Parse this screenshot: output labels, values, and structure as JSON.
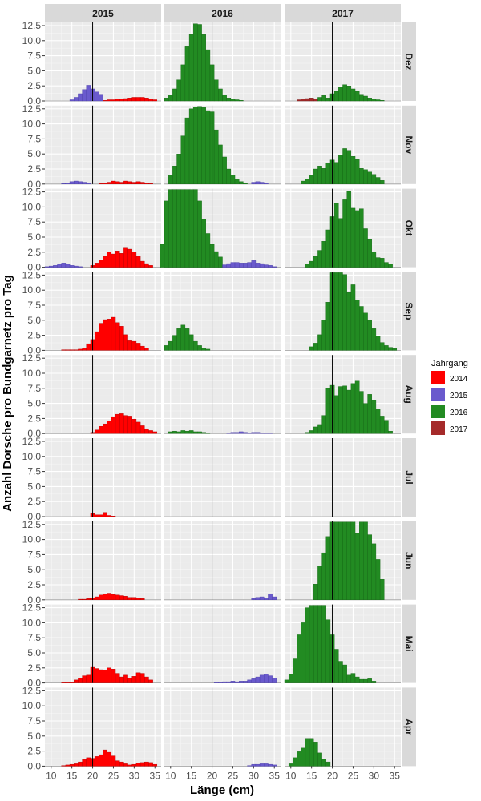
{
  "chart_data": {
    "type": "bar",
    "layout": "faceted histogram grid",
    "xlabel": "Länge (cm)",
    "ylabel": "Anzahl Dorsche pro Bundgarnetz pro Tag",
    "column_facets": [
      "2015",
      "2016",
      "2017"
    ],
    "row_facets": [
      "Dez",
      "Nov",
      "Okt",
      "Sep",
      "Aug",
      "Jul",
      "Jun",
      "Mai",
      "Apr"
    ],
    "xlim": [
      8.5,
      36.5
    ],
    "ylim": [
      0,
      12.5
    ],
    "x_ticks": [
      10,
      15,
      20,
      25,
      30,
      35
    ],
    "y_ticks": [
      "0.0",
      "2.5",
      "5.0",
      "7.5",
      "10.0",
      "12.5"
    ],
    "reference_line_x": 20,
    "bin_width_cm": 1,
    "legend": {
      "title": "Jahrgang",
      "placement": "right",
      "entries": [
        {
          "name": "2014",
          "color": "#ff0000"
        },
        {
          "name": "2015",
          "color": "#6a5acd"
        },
        {
          "name": "2016",
          "color": "#228b22"
        },
        {
          "name": "2017",
          "color": "#a52a2a"
        }
      ]
    },
    "panels": [
      {
        "row": "Dez",
        "col": "2015",
        "series": [
          {
            "cohort": "2015",
            "start": 15,
            "values": [
              0.2,
              0.6,
              1.2,
              1.9,
              2.6,
              2.0,
              1.5,
              1.1
            ]
          },
          {
            "cohort": "2014",
            "start": 23,
            "values": [
              0.1,
              0.2,
              0.2,
              0.3,
              0.3,
              0.4,
              0.5,
              0.6,
              0.6,
              0.6,
              0.5,
              0.3,
              0.2
            ]
          }
        ]
      },
      {
        "row": "Dez",
        "col": "2016",
        "series": [
          {
            "cohort": "2016",
            "start": 9,
            "values": [
              0.5,
              1.0,
              2.0,
              3.5,
              6.0,
              9.0,
              11.0,
              12.8,
              12.7,
              11.0,
              8.5,
              6.0,
              3.5,
              2.0,
              1.0,
              0.5,
              0.3,
              0.2,
              0.1
            ]
          }
        ]
      },
      {
        "row": "Dez",
        "col": "2017",
        "series": [
          {
            "cohort": "2017",
            "start": 12,
            "values": [
              0.2,
              0.3,
              0.4,
              0.5,
              0.3
            ]
          },
          {
            "cohort": "2016",
            "start": 17,
            "values": [
              0.6,
              0.9,
              0.5,
              1.2,
              1.6,
              2.3,
              2.7,
              2.5,
              2.0,
              1.6,
              1.1,
              0.8,
              0.5,
              0.3,
              0.2,
              0.1
            ]
          }
        ]
      },
      {
        "row": "Nov",
        "col": "2015",
        "series": [
          {
            "cohort": "2015",
            "start": 13,
            "values": [
              0.1,
              0.2,
              0.4,
              0.5,
              0.4,
              0.3,
              0.2
            ]
          },
          {
            "cohort": "2014",
            "start": 22,
            "values": [
              0.1,
              0.2,
              0.3,
              0.5,
              0.4,
              0.3,
              0.5,
              0.4,
              0.3,
              0.4,
              0.3,
              0.2,
              0.1
            ]
          }
        ]
      },
      {
        "row": "Nov",
        "col": "2016",
        "series": [
          {
            "cohort": "2016",
            "start": 10,
            "values": [
              1.5,
              3.0,
              5.0,
              8.0,
              11.0,
              12.5,
              12.8,
              12.9,
              12.7,
              12.2,
              12.0,
              9.0,
              6.5,
              4.5,
              2.5,
              1.5,
              0.8,
              0.4,
              0.2
            ]
          },
          {
            "cohort": "2015",
            "start": 30,
            "values": [
              0.3,
              0.4,
              0.3,
              0.2
            ]
          }
        ]
      },
      {
        "row": "Nov",
        "col": "2017",
        "series": [
          {
            "cohort": "2016",
            "start": 13,
            "values": [
              0.5,
              0.8,
              1.5,
              2.5,
              3.0,
              2.6,
              3.5,
              4.0,
              3.6,
              4.8,
              5.9,
              5.6,
              4.6,
              4.1,
              2.6,
              2.4,
              2.0,
              1.6,
              1.1,
              0.6
            ]
          }
        ]
      },
      {
        "row": "Okt",
        "col": "2015",
        "series": [
          {
            "cohort": "2015",
            "start": 9,
            "values": [
              0.1,
              0.2,
              0.3,
              0.5,
              0.7,
              0.5,
              0.3,
              0.2,
              0.1
            ]
          },
          {
            "cohort": "2014",
            "start": 20,
            "values": [
              0.3,
              0.7,
              1.2,
              1.8,
              2.5,
              2.2,
              2.7,
              2.3,
              3.3,
              3.0,
              2.5,
              1.8,
              1.0,
              0.6,
              0.3
            ]
          }
        ]
      },
      {
        "row": "Okt",
        "col": "2016",
        "series": [
          {
            "cohort": "2016",
            "start": 8,
            "values": [
              3.8,
              11.0,
              12.9,
              12.9,
              12.9,
              12.9,
              12.9,
              12.9,
              12.9,
              11.0,
              8.0,
              5.6,
              3.8,
              2.6,
              1.7
            ]
          },
          {
            "cohort": "2015",
            "start": 23,
            "values": [
              0.4,
              0.6,
              0.8,
              0.8,
              0.7,
              0.7,
              0.8,
              1.1,
              0.7,
              0.6,
              0.4,
              0.3,
              0.1
            ]
          }
        ]
      },
      {
        "row": "Okt",
        "col": "2017",
        "series": [
          {
            "cohort": "2016",
            "start": 14,
            "values": [
              0.5,
              1.0,
              1.8,
              2.8,
              4.3,
              6.2,
              8.4,
              10.6,
              8.1,
              11.2,
              12.6,
              9.8,
              9.4,
              9.7,
              6.4,
              4.6,
              2.5,
              1.6,
              1.5,
              0.8,
              0.5
            ]
          }
        ]
      },
      {
        "row": "Sep",
        "col": "2015",
        "series": [
          {
            "cohort": "2014",
            "start": 13,
            "values": [
              0.1,
              0.1,
              0.1,
              0.1,
              0.2,
              0.4,
              1.1,
              1.8,
              3.1,
              4.5,
              5.1,
              5.2,
              5.5,
              4.6,
              4.0,
              2.6,
              1.6,
              1.5,
              1.2,
              0.7,
              0.4
            ]
          }
        ]
      },
      {
        "row": "Sep",
        "col": "2016",
        "series": [
          {
            "cohort": "2016",
            "start": 9,
            "values": [
              0.8,
              1.5,
              2.5,
              3.6,
              4.2,
              3.6,
              2.6,
              1.5,
              0.8,
              0.4,
              0.2
            ]
          }
        ]
      },
      {
        "row": "Sep",
        "col": "2017",
        "series": [
          {
            "cohort": "2016",
            "start": 15,
            "values": [
              0.6,
              1.2,
              2.6,
              5.0,
              8.0,
              12.9,
              12.9,
              12.9,
              12.6,
              9.6,
              10.9,
              8.4,
              7.3,
              6.2,
              5.0,
              3.6,
              2.4,
              1.3,
              0.8,
              0.5,
              0.3
            ]
          }
        ]
      },
      {
        "row": "Aug",
        "col": "2015",
        "series": [
          {
            "cohort": "2014",
            "start": 20,
            "values": [
              0.2,
              0.6,
              1.2,
              1.6,
              2.1,
              2.8,
              3.2,
              3.3,
              3.0,
              2.9,
              2.4,
              1.9,
              1.3,
              0.8,
              0.5,
              0.3
            ]
          }
        ]
      },
      {
        "row": "Aug",
        "col": "2016",
        "series": [
          {
            "cohort": "2016",
            "start": 10,
            "values": [
              0.3,
              0.4,
              0.3,
              0.5,
              0.4,
              0.5,
              0.3,
              0.3,
              0.2,
              0.1
            ]
          },
          {
            "cohort": "2015",
            "start": 24,
            "values": [
              0.1,
              0.2,
              0.2,
              0.3,
              0.2,
              0.1,
              0.2,
              0.2,
              0.1,
              0.1,
              0.1
            ]
          }
        ]
      },
      {
        "row": "Aug",
        "col": "2017",
        "series": [
          {
            "cohort": "2016",
            "start": 14,
            "values": [
              0.2,
              0.5,
              1.1,
              1.5,
              3.0,
              7.5,
              8.0,
              6.3,
              7.8,
              7.9,
              7.2,
              8.3,
              8.7,
              7.0,
              5.0,
              6.5,
              5.5,
              4.1,
              2.9,
              2.2,
              0.4
            ]
          }
        ]
      },
      {
        "row": "Jul",
        "col": "2015",
        "series": [
          {
            "cohort": "2014",
            "start": 20,
            "values": [
              0.5,
              0.3,
              0.3,
              0.7,
              0.2,
              0.1
            ]
          }
        ]
      },
      {
        "row": "Jul",
        "col": "2016",
        "series": []
      },
      {
        "row": "Jul",
        "col": "2017",
        "series": []
      },
      {
        "row": "Jun",
        "col": "2015",
        "series": [
          {
            "cohort": "2014",
            "start": 17,
            "values": [
              0.1,
              0.1,
              0.2,
              0.3,
              0.5,
              0.8,
              1.0,
              1.1,
              0.9,
              0.8,
              0.7,
              0.6,
              0.4,
              0.4,
              0.3,
              0.2
            ]
          }
        ]
      },
      {
        "row": "Jun",
        "col": "2016",
        "series": [
          {
            "cohort": "2015",
            "start": 30,
            "values": [
              0.2,
              0.4,
              0.5,
              0.3,
              1.0,
              0.5
            ]
          }
        ]
      },
      {
        "row": "Jun",
        "col": "2017",
        "series": [
          {
            "cohort": "2016",
            "start": 16,
            "values": [
              2.6,
              5.6,
              7.8,
              10.5,
              12.9,
              12.9,
              12.9,
              12.9,
              12.9,
              12.9,
              11.0,
              12.9,
              12.9,
              10.8,
              9.3,
              6.7,
              3.4
            ]
          }
        ]
      },
      {
        "row": "Mai",
        "col": "2015",
        "series": [
          {
            "cohort": "2014",
            "start": 13,
            "values": [
              0.1,
              0.1,
              0.1,
              0.5,
              0.8,
              1.2,
              1.3,
              2.6,
              2.4,
              2.2,
              2.1,
              2.5,
              2.3,
              1.6,
              1.0,
              1.3,
              0.8,
              1.1,
              1.7,
              1.6,
              1.0,
              0.5
            ]
          }
        ]
      },
      {
        "row": "Mai",
        "col": "2016",
        "series": [
          {
            "cohort": "2015",
            "start": 21,
            "values": [
              0.1,
              0.1,
              0.2,
              0.2,
              0.3,
              0.2,
              0.3,
              0.3,
              0.5,
              0.7,
              1.0,
              1.3,
              1.5,
              1.2,
              0.8
            ]
          }
        ]
      },
      {
        "row": "Mai",
        "col": "2017",
        "series": [
          {
            "cohort": "2016",
            "start": 9,
            "values": [
              0.5,
              1.5,
              4.0,
              8.0,
              10.0,
              12.5,
              12.9,
              12.9,
              12.9,
              12.9,
              10.5,
              8.0,
              5.6,
              3.6,
              3.0,
              1.3,
              1.6,
              1.0,
              0.6,
              0.6,
              0.7,
              0.3
            ]
          }
        ]
      },
      {
        "row": "Apr",
        "col": "2015",
        "series": [
          {
            "cohort": "2014",
            "start": 13,
            "values": [
              0.1,
              0.2,
              0.3,
              0.4,
              0.7,
              1.1,
              1.4,
              1.3,
              1.6,
              1.9,
              2.7,
              2.3,
              1.7,
              0.9,
              0.7,
              0.4,
              0.2,
              0.3,
              0.5,
              0.6,
              0.7,
              0.6,
              0.3
            ]
          }
        ]
      },
      {
        "row": "Apr",
        "col": "2016",
        "series": [
          {
            "cohort": "2015",
            "start": 29,
            "values": [
              0.1,
              0.3,
              0.3,
              0.4,
              0.4,
              0.3,
              0.2
            ]
          }
        ]
      },
      {
        "row": "Apr",
        "col": "2017",
        "series": [
          {
            "cohort": "2016",
            "start": 10,
            "values": [
              0.4,
              1.4,
              2.4,
              3.0,
              4.6,
              4.6,
              4.0,
              2.2,
              1.2,
              0.7
            ]
          }
        ]
      }
    ]
  }
}
